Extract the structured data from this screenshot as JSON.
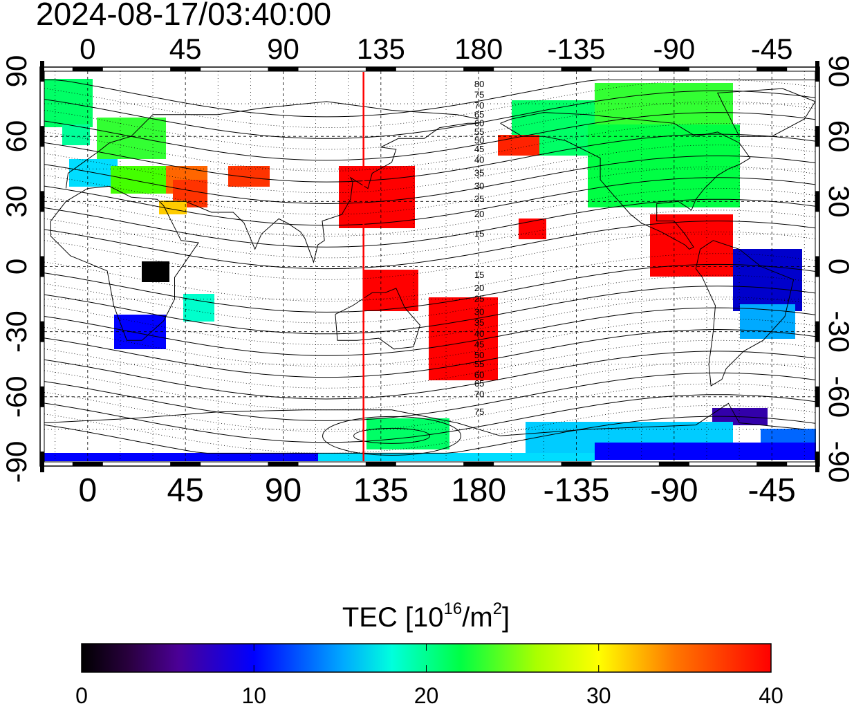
{
  "timestamp": "2024-08-17/03:40:00",
  "map": {
    "lon_ticks_top": [
      "0",
      "45",
      "90",
      "135",
      "180",
      "-135",
      "-90",
      "-45"
    ],
    "lon_ticks_bottom": [
      "0",
      "45",
      "90",
      "135",
      "180",
      "-135",
      "-90",
      "-45"
    ],
    "lat_ticks_left": [
      "90",
      "60",
      "30",
      "0",
      "-30",
      "-60",
      "-90"
    ],
    "lat_ticks_right": [
      "90",
      "60",
      "30",
      "0",
      "-30",
      "-60",
      "-90"
    ],
    "lon_tick_values": [
      0,
      45,
      90,
      135,
      180,
      225,
      270,
      315
    ],
    "lat_tick_values": [
      90,
      60,
      30,
      0,
      -30,
      -60,
      -90
    ],
    "lon_range": [
      -20,
      335
    ],
    "lat_range": [
      -90,
      90
    ],
    "marker_longitude": 127,
    "marker_color": "#ff0000",
    "contour_labels_north": [
      "80",
      "75",
      "70",
      "65",
      "60",
      "55",
      "50",
      "45",
      "40",
      "35",
      "30",
      "25",
      "20",
      "15"
    ],
    "contour_labels_south": [
      "15",
      "20",
      "25",
      "30",
      "35",
      "40",
      "45",
      "50",
      "55",
      "60",
      "65",
      "70",
      "75"
    ],
    "contour_label_lats_north": [
      84,
      79,
      74,
      70,
      66,
      62,
      58,
      54,
      49,
      43,
      37,
      31,
      24,
      15
    ],
    "contour_label_lats_south": [
      -4,
      -10,
      -15,
      -21,
      -26,
      -31,
      -36,
      -41,
      -45,
      -50,
      -54,
      -59,
      -67
    ]
  },
  "colorbar": {
    "title": "TEC  [10",
    "title_sup": "16",
    "title_mid": "/m",
    "title_sup2": "2",
    "title_end": "]",
    "tick_labels": [
      "0",
      "10",
      "20",
      "30",
      "40"
    ],
    "range": [
      0,
      40
    ]
  }
}
